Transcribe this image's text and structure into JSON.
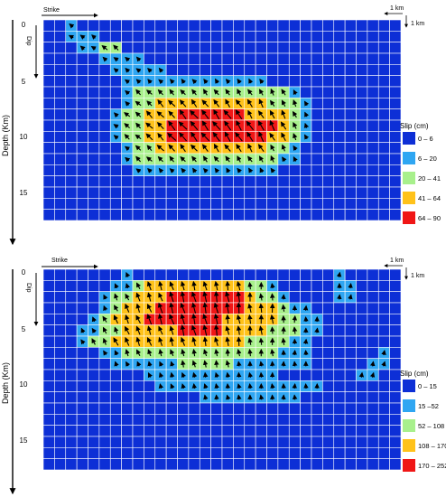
{
  "colors": {
    "bin1": "#0d2fd6",
    "bin2": "#2fa6f2",
    "bin3": "#a8f08c",
    "bin4": "#ffc21a",
    "bin5": "#f01616",
    "grid": "#ffffff",
    "arrow": "#000000"
  },
  "chart_data": [
    {
      "type": "heatmap",
      "title": "",
      "xlabel": "Strike",
      "ylabel": "Depth (Km)",
      "dip_label": "Dip",
      "scale_labels": [
        "1 km",
        "1 km"
      ],
      "y_ticks": [
        "0",
        "5",
        "10",
        "15"
      ],
      "ylim": [
        0,
        20
      ],
      "grid": true,
      "legend_position": "right",
      "legend_title": "Slip (cm)",
      "legend_bins": [
        "0 – 6",
        "6 – 20",
        "20 – 41",
        "41 – 64",
        "64 – 90"
      ],
      "rows": [
        "00100000000000000000000000000000",
        "00111000000000000000000000000000",
        "00011220000000000000000000000000",
        "00000111100000000000000000000000",
        "00000011111000000000000000000000",
        "00000001111111111111000000000000",
        "00000001222222222222221000000000",
        "00000001223333333333222100000000",
        "00000012233344444433332100000000",
        "00000012233444444444432100000000",
        "00000012233444444444332100000000",
        "00000001223333333333221000000000",
        "00000001222222222222211000000000",
        "00000000111111111111100000000000",
        "00000000000000000000000000000000",
        "00000000000000000000000000000000",
        "00000000000000000000000000000000",
        "00000000000000000000000000000000"
      ]
    },
    {
      "type": "heatmap",
      "title": "",
      "xlabel": "Strike",
      "ylabel": "Depth (Km)",
      "dip_label": "Dip",
      "scale_labels": [
        "1 km",
        "1 km"
      ],
      "y_ticks": [
        "0",
        "5",
        "10",
        "15"
      ],
      "ylim": [
        0,
        20
      ],
      "grid": true,
      "legend_position": "right",
      "legend_title": "Slip (cm)",
      "legend_bins": [
        "0 – 15",
        "15 –52",
        "52 – 108",
        "108 – 170",
        "170 – 252"
      ],
      "rows": [
        "00000001000000000000000000100000",
        "00000011233333333322100000110000",
        "00000122333444444432210000110000",
        "00000123334444444433321100000000",
        "00001233344444443333322110000000",
        "00011223333344443333222110000000",
        "00012233333333333322221100000000",
        "00000112222222222222211100000010",
        "00000011111122222111111100000110",
        "00000000011111111111100000001100",
        "00000000001111111111111110000000",
        "00000000000000111111111000000000",
        "00000000000000000000000000000000",
        "00000000000000000000000000000000",
        "00000000000000000000000000000000",
        "00000000000000000000000000000000",
        "00000000000000000000000000000000",
        "00000000000000000000000000000000"
      ]
    }
  ]
}
